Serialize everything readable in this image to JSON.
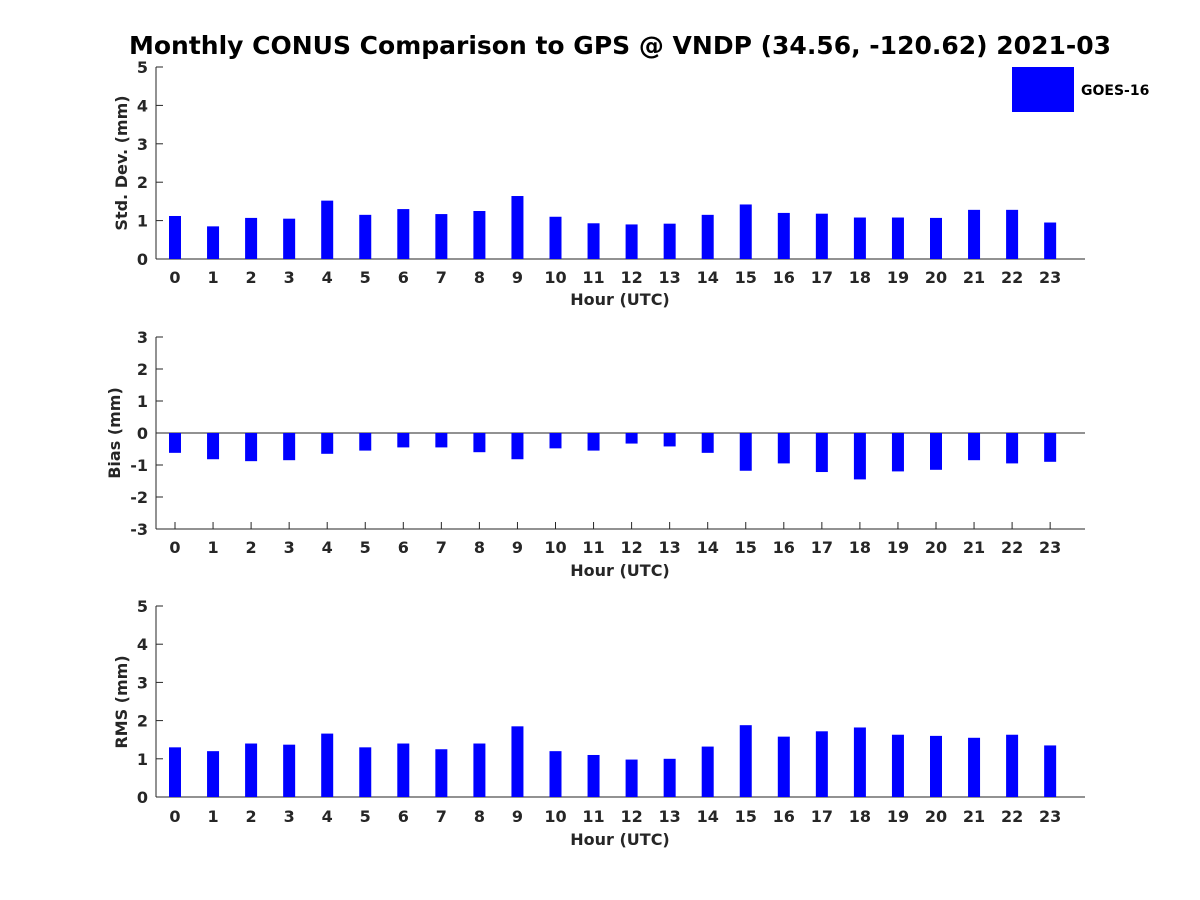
{
  "colors": {
    "bar": "#0000FF",
    "axis": "#262626",
    "title": "#000000"
  },
  "chart_data": [
    {
      "type": "bar",
      "title": "Monthly CONUS Comparison to GPS @ VNDP (34.56, -120.62) 2021-03",
      "xlabel": "Hour (UTC)",
      "ylabel": "Std. Dev. (mm)",
      "categories": [
        "0",
        "1",
        "2",
        "3",
        "4",
        "5",
        "6",
        "7",
        "8",
        "9",
        "10",
        "11",
        "12",
        "13",
        "14",
        "15",
        "16",
        "17",
        "18",
        "19",
        "20",
        "21",
        "22",
        "23"
      ],
      "ylim": [
        0,
        5
      ],
      "yticks": [
        "0",
        "1",
        "2",
        "3",
        "4",
        "5"
      ],
      "zero_line": false,
      "legend": {
        "position": "top-right",
        "entries": [
          "GOES-16"
        ]
      },
      "series": [
        {
          "name": "GOES-16",
          "values": [
            1.12,
            0.85,
            1.07,
            1.05,
            1.52,
            1.15,
            1.3,
            1.17,
            1.25,
            1.64,
            1.1,
            0.93,
            0.9,
            0.92,
            1.15,
            1.42,
            1.2,
            1.18,
            1.08,
            1.08,
            1.07,
            1.28,
            1.28,
            0.95
          ]
        }
      ]
    },
    {
      "type": "bar",
      "title": "",
      "xlabel": "Hour (UTC)",
      "ylabel": "Bias (mm)",
      "categories": [
        "0",
        "1",
        "2",
        "3",
        "4",
        "5",
        "6",
        "7",
        "8",
        "9",
        "10",
        "11",
        "12",
        "13",
        "14",
        "15",
        "16",
        "17",
        "18",
        "19",
        "20",
        "21",
        "22",
        "23"
      ],
      "ylim": [
        -3,
        3
      ],
      "yticks": [
        "-3",
        "-2",
        "-1",
        "0",
        "1",
        "2",
        "3"
      ],
      "zero_line": true,
      "series": [
        {
          "name": "GOES-16",
          "values": [
            -0.62,
            -0.82,
            -0.88,
            -0.85,
            -0.65,
            -0.55,
            -0.45,
            -0.45,
            -0.6,
            -0.82,
            -0.48,
            -0.55,
            -0.33,
            -0.42,
            -0.62,
            -1.18,
            -0.95,
            -1.22,
            -1.45,
            -1.2,
            -1.15,
            -0.85,
            -0.95,
            -0.9
          ]
        }
      ]
    },
    {
      "type": "bar",
      "title": "",
      "xlabel": "Hour (UTC)",
      "ylabel": "RMS (mm)",
      "categories": [
        "0",
        "1",
        "2",
        "3",
        "4",
        "5",
        "6",
        "7",
        "8",
        "9",
        "10",
        "11",
        "12",
        "13",
        "14",
        "15",
        "16",
        "17",
        "18",
        "19",
        "20",
        "21",
        "22",
        "23"
      ],
      "ylim": [
        0,
        5
      ],
      "yticks": [
        "0",
        "1",
        "2",
        "3",
        "4",
        "5"
      ],
      "zero_line": false,
      "series": [
        {
          "name": "GOES-16",
          "values": [
            1.3,
            1.2,
            1.4,
            1.37,
            1.66,
            1.3,
            1.4,
            1.25,
            1.4,
            1.85,
            1.2,
            1.1,
            0.98,
            1.0,
            1.32,
            1.88,
            1.58,
            1.72,
            1.82,
            1.63,
            1.6,
            1.55,
            1.63,
            1.35
          ]
        }
      ]
    }
  ]
}
